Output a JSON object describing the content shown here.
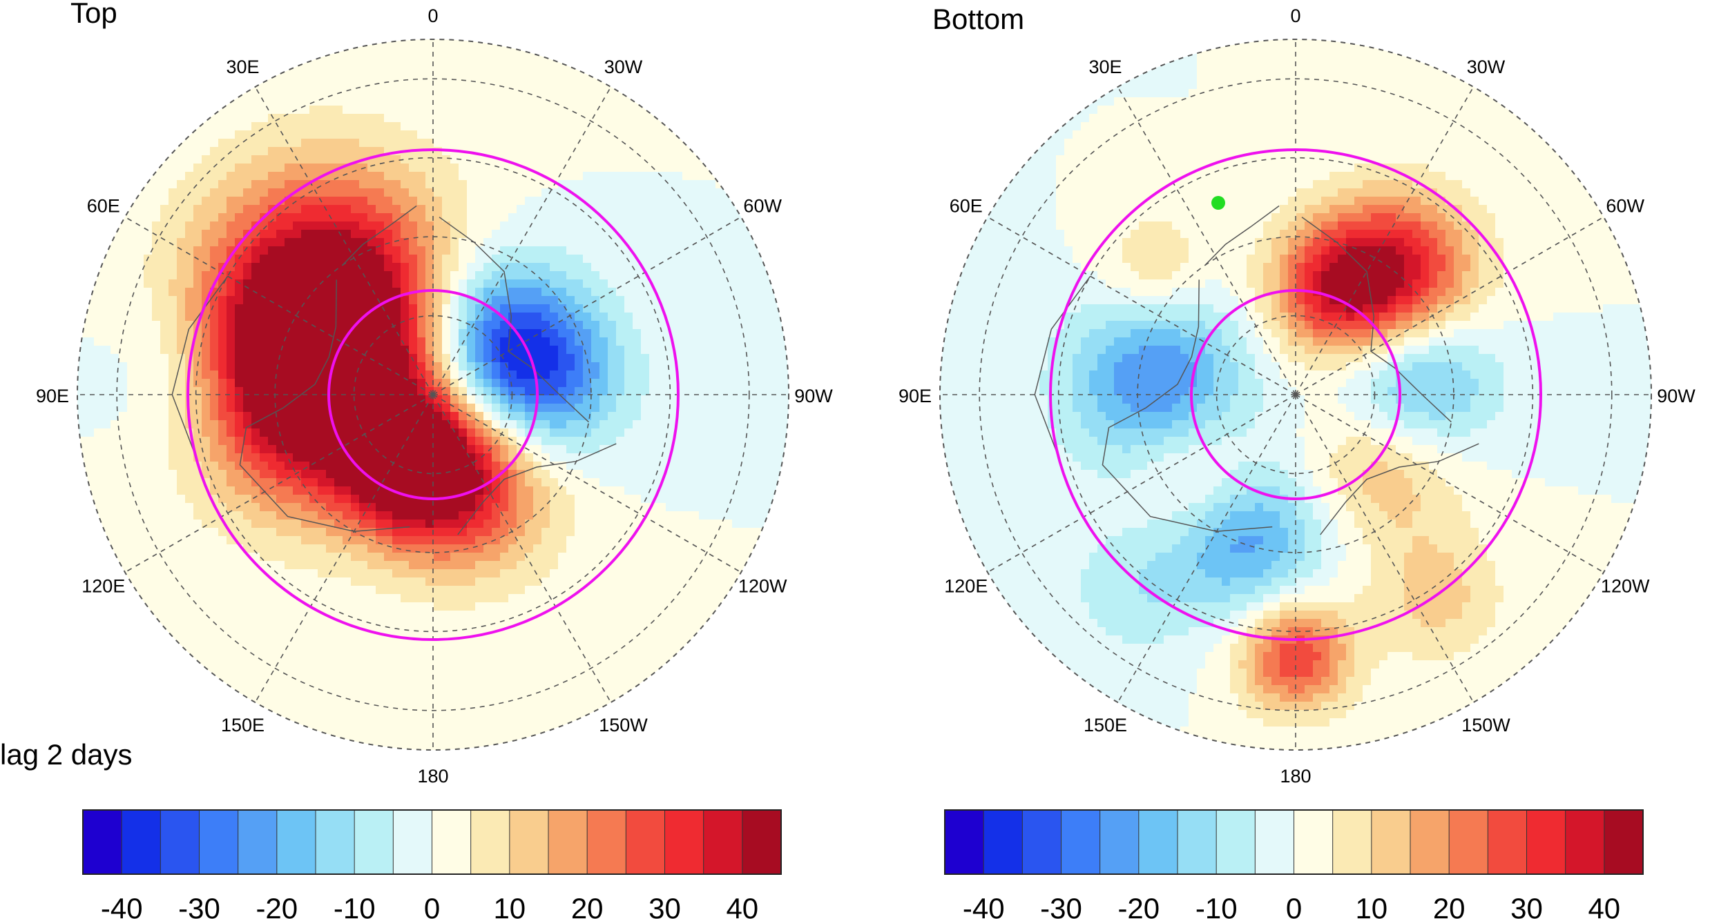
{
  "panels": [
    {
      "title": "Top",
      "longitude_labels": [
        "0",
        "30W",
        "60W",
        "90W",
        "120W",
        "150W",
        "180",
        "150E",
        "120E",
        "90E",
        "60E",
        "30E"
      ],
      "blobs": [
        {
          "lon": 45,
          "colat": 38,
          "value": 42,
          "spread": 22
        },
        {
          "lon": 75,
          "colat": 30,
          "value": 32,
          "spread": 18
        },
        {
          "lon": 100,
          "colat": 32,
          "value": 24,
          "spread": 20
        },
        {
          "lon": 165,
          "colat": 18,
          "value": 38,
          "spread": 12
        },
        {
          "lon": 200,
          "colat": 25,
          "value": 28,
          "spread": 16
        },
        {
          "lon": 300,
          "colat": 22,
          "value": -28,
          "spread": 14
        },
        {
          "lon": 275,
          "colat": 30,
          "value": -18,
          "spread": 14
        },
        {
          "lon": 330,
          "colat": 25,
          "value": -8,
          "spread": 15
        },
        {
          "lon": 85,
          "colat": 62,
          "value": -8,
          "spread": 14
        }
      ]
    },
    {
      "title": "Bottom",
      "longitude_labels": [
        "0",
        "30W",
        "60W",
        "90W",
        "120W",
        "150W",
        "180",
        "150E",
        "120E",
        "90E",
        "60E",
        "30E"
      ],
      "blobs": [
        {
          "lon": 320,
          "colat": 40,
          "value": 36,
          "spread": 14
        },
        {
          "lon": 340,
          "colat": 28,
          "value": 28,
          "spread": 12
        },
        {
          "lon": 275,
          "colat": 30,
          "value": -26,
          "spread": 14
        },
        {
          "lon": 235,
          "colat": 28,
          "value": 18,
          "spread": 14
        },
        {
          "lon": 85,
          "colat": 35,
          "value": -26,
          "spread": 16
        },
        {
          "lon": 160,
          "colat": 38,
          "value": -24,
          "spread": 14
        },
        {
          "lon": 130,
          "colat": 32,
          "value": 15,
          "spread": 12
        },
        {
          "lon": 180,
          "colat": 66,
          "value": 30,
          "spread": 10
        },
        {
          "lon": 48,
          "colat": 48,
          "value": 12,
          "spread": 10
        },
        {
          "lon": 215,
          "colat": 62,
          "value": 12,
          "spread": 12
        },
        {
          "lon": 140,
          "colat": 65,
          "value": -8,
          "spread": 12
        }
      ]
    }
  ],
  "lag_label": "lag 2 days",
  "colorbar": {
    "colors": [
      "#1e00d0",
      "#1430e8",
      "#2a55f0",
      "#3d7ef8",
      "#55a0f5",
      "#6dc4f5",
      "#96def5",
      "#baf0f5",
      "#e4f9fa",
      "#fffde6",
      "#fbeab4",
      "#f9cd8e",
      "#f6a46a",
      "#f57a52",
      "#f24b3e",
      "#ef2b31",
      "#d4162a",
      "#a70c22"
    ],
    "levels": [
      -40,
      -35,
      -30,
      -25,
      -20,
      -15,
      -10,
      -5,
      0,
      5,
      10,
      15,
      20,
      25,
      30,
      35,
      40
    ],
    "tick_labels": [
      "-40",
      "-30",
      "-20",
      "-10",
      "0",
      "10",
      "20",
      "30",
      "40"
    ]
  }
}
